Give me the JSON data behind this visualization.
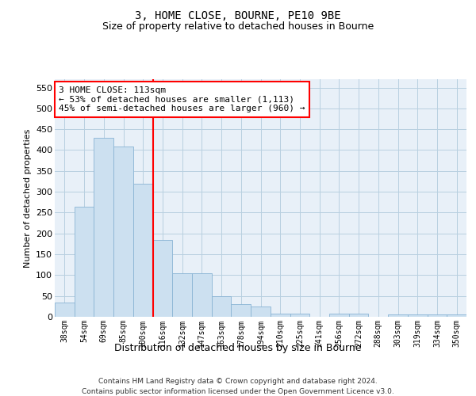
{
  "title": "3, HOME CLOSE, BOURNE, PE10 9BE",
  "subtitle": "Size of property relative to detached houses in Bourne",
  "xlabel": "Distribution of detached houses by size in Bourne",
  "ylabel": "Number of detached properties",
  "footer_line1": "Contains HM Land Registry data © Crown copyright and database right 2024.",
  "footer_line2": "Contains public sector information licensed under the Open Government Licence v3.0.",
  "bar_labels": [
    "38sqm",
    "54sqm",
    "69sqm",
    "85sqm",
    "100sqm",
    "116sqm",
    "132sqm",
    "147sqm",
    "163sqm",
    "178sqm",
    "194sqm",
    "210sqm",
    "225sqm",
    "241sqm",
    "256sqm",
    "272sqm",
    "288sqm",
    "303sqm",
    "319sqm",
    "334sqm",
    "350sqm"
  ],
  "bar_values": [
    35,
    265,
    430,
    408,
    320,
    185,
    105,
    105,
    50,
    30,
    25,
    8,
    8,
    0,
    8,
    8,
    0,
    5,
    5,
    5,
    5
  ],
  "bar_color": "#cce0f0",
  "bar_edge_color": "#8ab4d4",
  "grid_color": "#b8cfe0",
  "background_color": "#e8f0f8",
  "annotation_line1": "3 HOME CLOSE: 113sqm",
  "annotation_line2": "← 53% of detached houses are smaller (1,113)",
  "annotation_line3": "45% of semi-detached houses are larger (960) →",
  "annotation_box_color": "white",
  "annotation_box_edge_color": "red",
  "vline_color": "red",
  "vline_pos": 4.5,
  "ylim": [
    0,
    570
  ],
  "yticks": [
    0,
    50,
    100,
    150,
    200,
    250,
    300,
    350,
    400,
    450,
    500,
    550
  ],
  "title_fontsize": 10,
  "subtitle_fontsize": 9
}
